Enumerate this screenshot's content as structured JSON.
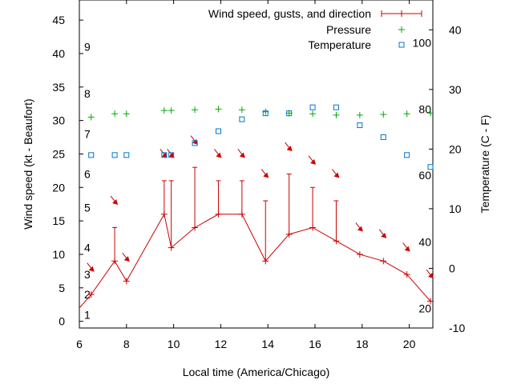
{
  "chart_data": {
    "type": "line",
    "xlabel": "Local time (America/Chicago)",
    "ylabel": "Wind speed (kt - Beaufort)",
    "y2label": "Temperature (C - F)",
    "xlim": [
      6,
      21
    ],
    "ylim": [
      -1,
      48
    ],
    "y2lim": [
      -10,
      45
    ],
    "x_ticks": [
      6,
      8,
      10,
      12,
      14,
      16,
      18,
      20
    ],
    "y_ticks": [
      0,
      5,
      10,
      15,
      20,
      25,
      30,
      35,
      40,
      45
    ],
    "y2_ticks": [
      -10,
      0,
      10,
      20,
      30,
      40
    ],
    "beaufort_labels": [
      {
        "label": "1",
        "y": 1
      },
      {
        "label": "2",
        "y": 4
      },
      {
        "label": "3",
        "y": 7
      },
      {
        "label": "4",
        "y": 11
      },
      {
        "label": "5",
        "y": 17
      },
      {
        "label": "6",
        "y": 22
      },
      {
        "label": "7",
        "y": 28
      },
      {
        "label": "8",
        "y": 34
      },
      {
        "label": "9",
        "y": 41
      }
    ],
    "fahrenheit_labels": [
      {
        "label": "20",
        "y2": -6.7
      },
      {
        "label": "40",
        "y2": 4.4
      },
      {
        "label": "60",
        "y2": 15.6
      },
      {
        "label": "80",
        "y2": 26.7
      },
      {
        "label": "100",
        "y2": 37.8
      }
    ],
    "legend": [
      {
        "name": "Wind speed, gusts, and direction",
        "color": "#cc0000",
        "marker": "errorbar"
      },
      {
        "name": "Pressure",
        "color": "#00aa00",
        "marker": "plus"
      },
      {
        "name": "Temperature",
        "color": "#0077cc",
        "marker": "square"
      }
    ],
    "legend_position": "top-right",
    "wind": {
      "color": "#cc0000",
      "x": [
        6,
        6.5,
        7.5,
        8,
        9.6,
        9.9,
        10.9,
        11.9,
        12.9,
        13.9,
        14.9,
        15.9,
        16.9,
        17.9,
        18.9,
        19.9,
        20.9
      ],
      "y": [
        2,
        4,
        9,
        6,
        16,
        11,
        14,
        16,
        16,
        9,
        13,
        14,
        12,
        10,
        9,
        7,
        3
      ],
      "gust": [
        null,
        null,
        14,
        null,
        21,
        21,
        23,
        21,
        21,
        18,
        22,
        20,
        18,
        null,
        null,
        null,
        null
      ],
      "direction_y": [
        null,
        8,
        18,
        9.5,
        25,
        25,
        27,
        25,
        25,
        22,
        26,
        24,
        22,
        14,
        13,
        11,
        7
      ]
    },
    "pressure": {
      "color": "#00aa00",
      "x": [
        6.5,
        7.5,
        8,
        9.6,
        9.9,
        10.9,
        11.9,
        12.9,
        13.9,
        14.9,
        15.9,
        16.9,
        17.9,
        18.9,
        19.9,
        20.9
      ],
      "y": [
        30.5,
        31,
        31,
        31.5,
        31.5,
        31.6,
        31.7,
        31.6,
        31.3,
        31.1,
        31,
        30.8,
        30.8,
        30.9,
        31,
        31.1
      ]
    },
    "temperature": {
      "color": "#0077cc",
      "x": [
        6.5,
        7.5,
        8,
        9.6,
        9.9,
        10.9,
        11.9,
        12.9,
        13.9,
        14.9,
        15.9,
        16.9,
        17.9,
        18.9,
        19.9,
        20.9
      ],
      "y2": [
        19,
        19,
        19,
        19,
        19,
        21,
        23,
        25,
        26,
        26,
        27,
        27,
        24,
        22,
        19,
        17
      ]
    }
  }
}
